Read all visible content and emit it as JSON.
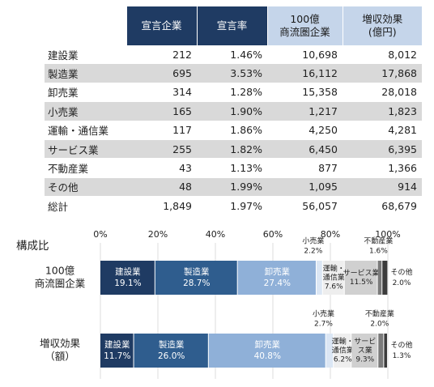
{
  "table": {
    "headers": [
      "宣言企業",
      "宣言率",
      "100億\n商流圏企業",
      "増収効果\n(億円)"
    ],
    "rows": [
      [
        "建設業",
        "212",
        "1.46%",
        "10,698",
        "8,012"
      ],
      [
        "製造業",
        "695",
        "3.53%",
        "16,112",
        "17,868"
      ],
      [
        "卸売業",
        "314",
        "1.28%",
        "15,358",
        "28,018"
      ],
      [
        "小売業",
        "165",
        "1.90%",
        "1,217",
        "1,823"
      ],
      [
        "運輸・通信業",
        "117",
        "1.86%",
        "4,250",
        "4,281"
      ],
      [
        "サービス業",
        "255",
        "1.82%",
        "6,450",
        "6,395"
      ],
      [
        "不動産業",
        "43",
        "1.13%",
        "877",
        "1,366"
      ],
      [
        "その他",
        "48",
        "1.99%",
        "1,095",
        "914"
      ]
    ],
    "total": [
      "総計",
      "1,849",
      "1.97%",
      "56,057",
      "68,679"
    ]
  },
  "chart_data": {
    "type": "bar",
    "orientation": "horizontal",
    "stacked": true,
    "title": "構成比",
    "x_ticks": [
      "0%",
      "20%",
      "40%",
      "60%",
      "80%",
      "100%"
    ],
    "xlim": [
      0,
      100
    ],
    "categories": [
      "100億\n商流圏企業",
      "増収効果\n（額）"
    ],
    "series": [
      {
        "name": "建設業",
        "color": "#1f3b63",
        "label_color": "#ffffff",
        "values": [
          19.1,
          11.7
        ],
        "labels": [
          "建設業\n19.1%",
          "建設業\n11.7%"
        ]
      },
      {
        "name": "製造業",
        "color": "#2f5d8e",
        "label_color": "#ffffff",
        "values": [
          28.7,
          26.0
        ],
        "labels": [
          "製造業\n28.7%",
          "製造業\n26.0%"
        ]
      },
      {
        "name": "卸売業",
        "color": "#8fb0d8",
        "label_color": "#ffffff",
        "values": [
          27.4,
          40.8
        ],
        "labels": [
          "卸売業\n27.4%",
          "卸売業\n40.8%"
        ]
      },
      {
        "name": "小売業",
        "color": "#dbe6f4",
        "label_color": "#222222",
        "values": [
          2.2,
          2.7
        ],
        "labels": [
          "小売業\n2.2%",
          "小売業\n2.7%"
        ]
      },
      {
        "name": "運輸・通信業",
        "color": "#eeeeee",
        "label_color": "#222222",
        "values": [
          7.6,
          6.2
        ],
        "labels": [
          "運輸・\n通信業\n7.6%",
          "運輸・\n通信業\n6.2%"
        ]
      },
      {
        "name": "サービス業",
        "color": "#d0d0d0",
        "label_color": "#222222",
        "values": [
          11.5,
          9.3
        ],
        "labels": [
          "サービス業\n11.5%",
          "サービ\nス業\n9.3%"
        ]
      },
      {
        "name": "不動産業",
        "color": "#7a7a7a",
        "label_color": "#222222",
        "values": [
          1.6,
          2.0
        ],
        "labels": [
          "不動産業\n1.6%",
          "不動産業\n2.0%"
        ]
      },
      {
        "name": "その他",
        "color": "#3c3c3c",
        "label_color": "#222222",
        "values": [
          2.0,
          1.3
        ],
        "labels": [
          "その他\n2.0%",
          "その他\n1.3%"
        ]
      }
    ]
  }
}
